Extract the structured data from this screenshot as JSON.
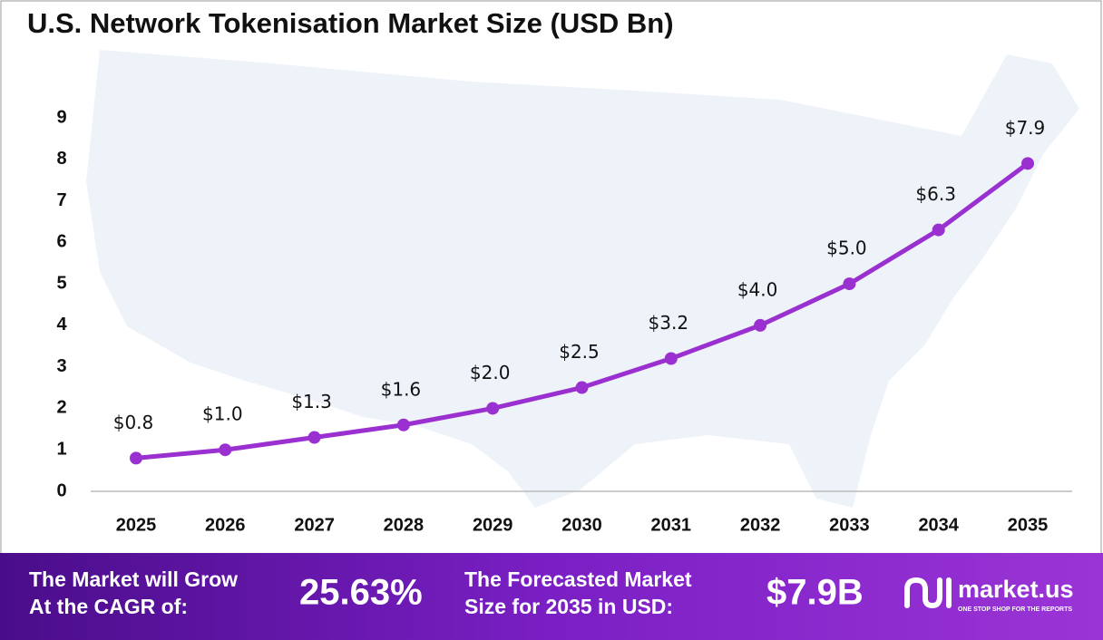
{
  "chart_data": {
    "type": "line",
    "title": "U.S. Network Tokenisation Market Size (USD Bn)",
    "categories": [
      "2025",
      "2026",
      "2027",
      "2028",
      "2029",
      "2030",
      "2031",
      "2032",
      "2033",
      "2034",
      "2035"
    ],
    "values": [
      0.8,
      1.0,
      1.3,
      1.6,
      2.0,
      2.5,
      3.2,
      4.0,
      5.0,
      6.3,
      7.9
    ],
    "value_labels": [
      "$0.8",
      "$1.0",
      "$1.3",
      "$1.6",
      "$2.0",
      "$2.5",
      "$3.2",
      "$4.0",
      "$5.0",
      "$6.3",
      "$7.9"
    ],
    "color": "#9b30d0",
    "ylim": [
      0,
      9
    ],
    "yticks": [
      0,
      1,
      2,
      3,
      4,
      5,
      6,
      7,
      8,
      9
    ],
    "grid": false
  },
  "footer": {
    "cagr_label": [
      "The Market will Grow",
      "At the CAGR of:"
    ],
    "cagr_value": "25.63%",
    "forecast_label": [
      "The Forecasted Market",
      "Size for 2035 in USD:"
    ],
    "forecast_value": "$7.9B",
    "brand": "market.us",
    "tagline": "ONE STOP SHOP FOR THE REPORTS"
  }
}
